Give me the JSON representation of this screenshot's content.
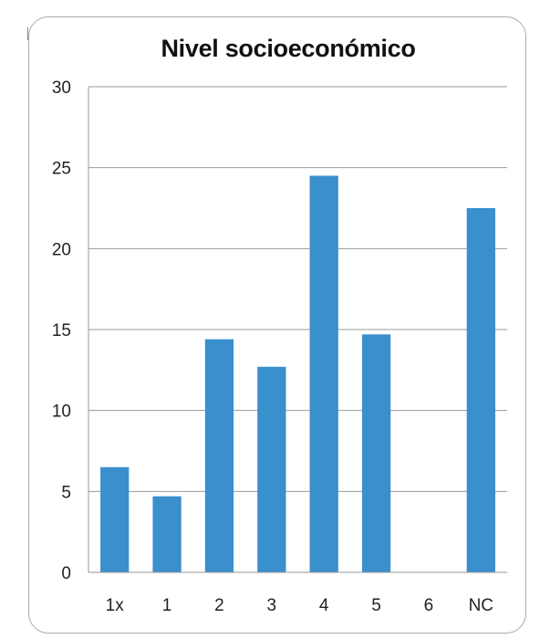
{
  "chart_data": {
    "type": "bar",
    "title": "Nivel socioeconómico",
    "xlabel": "",
    "ylabel": "",
    "categories": [
      "1x",
      "1",
      "2",
      "3",
      "4",
      "5",
      "6",
      "NC"
    ],
    "values": [
      6.5,
      4.7,
      14.4,
      12.7,
      24.5,
      14.7,
      0,
      22.5
    ],
    "ylim": [
      0,
      30
    ],
    "yticks": [
      "0",
      "5",
      "10",
      "15",
      "20",
      "25",
      "30"
    ],
    "grid": true,
    "legend": "none",
    "colors": {
      "bar": "#3a8fcd",
      "grid": "#9a9a9a",
      "axis": "#9a9a9a"
    }
  }
}
